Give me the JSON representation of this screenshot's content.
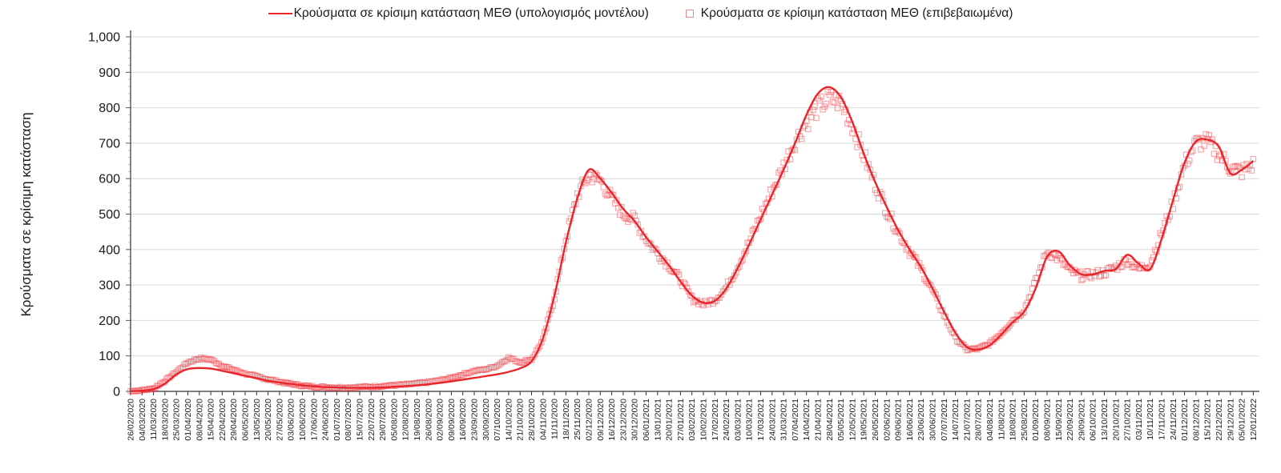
{
  "chart_data": {
    "type": "line+scatter",
    "title": "",
    "ylabel": "Κρούσματα σε κρίσιμη κατάσταση",
    "xlabel": "",
    "ylim": [
      0,
      1000
    ],
    "ytick_step": 100,
    "ytick_labels": [
      "0",
      "100",
      "200",
      "300",
      "400",
      "500",
      "600",
      "700",
      "800",
      "900",
      "1,000"
    ],
    "grid": "horizontal-major",
    "legend_position": "top-center",
    "categories": [
      "26/02/2020",
      "04/03/2020",
      "11/03/2020",
      "18/03/2020",
      "25/03/2020",
      "01/04/2020",
      "08/04/2020",
      "15/04/2020",
      "22/04/2020",
      "29/04/2020",
      "06/05/2020",
      "13/05/2020",
      "20/05/2020",
      "27/05/2020",
      "03/06/2020",
      "10/06/2020",
      "17/06/2020",
      "24/06/2020",
      "01/07/2020",
      "08/07/2020",
      "15/07/2020",
      "22/07/2020",
      "29/07/2020",
      "05/08/2020",
      "12/08/2020",
      "19/08/2020",
      "26/08/2020",
      "02/09/2020",
      "09/09/2020",
      "16/09/2020",
      "23/09/2020",
      "30/09/2020",
      "07/10/2020",
      "14/10/2020",
      "21/10/2020",
      "28/10/2020",
      "04/11/2020",
      "11/11/2020",
      "18/11/2020",
      "25/11/2020",
      "02/12/2020",
      "09/12/2020",
      "16/12/2020",
      "23/12/2020",
      "30/12/2020",
      "06/01/2021",
      "13/01/2021",
      "20/01/2021",
      "27/01/2021",
      "03/02/2021",
      "10/02/2021",
      "17/02/2021",
      "24/02/2021",
      "03/03/2021",
      "10/03/2021",
      "17/03/2021",
      "24/03/2021",
      "31/03/2021",
      "07/04/2021",
      "14/04/2021",
      "21/04/2021",
      "28/04/2021",
      "05/05/2021",
      "12/05/2021",
      "19/05/2021",
      "26/05/2021",
      "02/06/2021",
      "09/06/2021",
      "16/06/2021",
      "23/06/2021",
      "30/06/2021",
      "07/07/2021",
      "14/07/2021",
      "21/07/2021",
      "28/07/2021",
      "04/08/2021",
      "11/08/2021",
      "18/08/2021",
      "25/08/2021",
      "01/09/2021",
      "08/09/2021",
      "15/09/2021",
      "22/09/2021",
      "29/09/2021",
      "06/10/2021",
      "13/10/2021",
      "20/10/2021",
      "27/10/2021",
      "03/11/2021",
      "10/11/2021",
      "17/11/2021",
      "24/11/2021",
      "01/12/2021",
      "08/12/2021",
      "15/12/2021",
      "22/12/2021",
      "29/12/2021",
      "05/01/2022",
      "12/01/2022"
    ],
    "series": [
      {
        "name": "Κρούσματα σε κρίσιμη κατάσταση ΜΕΘ (υπολογισμός μοντέλου)",
        "type": "line",
        "color": "#e8252b",
        "values": [
          1,
          2,
          6,
          22,
          48,
          63,
          66,
          64,
          58,
          51,
          44,
          37,
          30,
          25,
          21,
          17,
          14,
          12,
          11,
          10,
          10,
          10,
          11,
          13,
          15,
          17,
          20,
          24,
          28,
          33,
          38,
          43,
          48,
          55,
          65,
          85,
          150,
          270,
          420,
          545,
          625,
          600,
          560,
          515,
          480,
          435,
          395,
          355,
          310,
          270,
          250,
          255,
          290,
          348,
          415,
          485,
          555,
          625,
          700,
          780,
          840,
          858,
          830,
          760,
          670,
          590,
          520,
          455,
          400,
          350,
          290,
          225,
          165,
          125,
          118,
          130,
          160,
          195,
          225,
          290,
          380,
          395,
          355,
          330,
          330,
          340,
          345,
          385,
          360,
          345,
          430,
          540,
          645,
          705,
          710,
          690,
          615,
          625,
          650
        ]
      },
      {
        "name": "Κρούσματα σε κρίσιμη κατάσταση ΜΕΘ (επιβεβαιωμένα)",
        "type": "scatter",
        "marker": "open-square",
        "color": "#ef4146",
        "values": [
          1,
          3,
          8,
          30,
          55,
          82,
          93,
          90,
          72,
          61,
          50,
          42,
          34,
          27,
          21,
          16,
          13,
          12,
          11,
          11,
          12,
          13,
          15,
          17,
          19,
          22,
          26,
          31,
          38,
          48,
          58,
          62,
          72,
          95,
          82,
          90,
          145,
          265,
          430,
          555,
          610,
          595,
          545,
          500,
          485,
          430,
          390,
          355,
          315,
          262,
          246,
          258,
          292,
          352,
          420,
          495,
          565,
          635,
          705,
          760,
          800,
          825,
          815,
          750,
          665,
          585,
          510,
          450,
          395,
          345,
          285,
          215,
          150,
          118,
          120,
          135,
          165,
          200,
          230,
          310,
          395,
          375,
          340,
          325,
          330,
          335,
          350,
          370,
          345,
          360,
          445,
          530,
          640,
          700,
          705,
          670,
          630,
          620,
          640
        ]
      }
    ],
    "colors": {
      "line": "#e8252b",
      "marker_edge": "#ef4146",
      "gridline": "#d9d9d9",
      "axis": "#595959",
      "tick_text": "#1a1a1a"
    }
  },
  "legend": {
    "items": [
      {
        "label": "Κρούσματα σε κρίσιμη κατάσταση ΜΕΘ (υπολογισμός μοντέλου)",
        "marker": "line"
      },
      {
        "label": "Κρούσματα σε κρίσιμη κατάσταση ΜΕΘ (επιβεβαιωμένα)",
        "marker": "open-square"
      }
    ]
  }
}
